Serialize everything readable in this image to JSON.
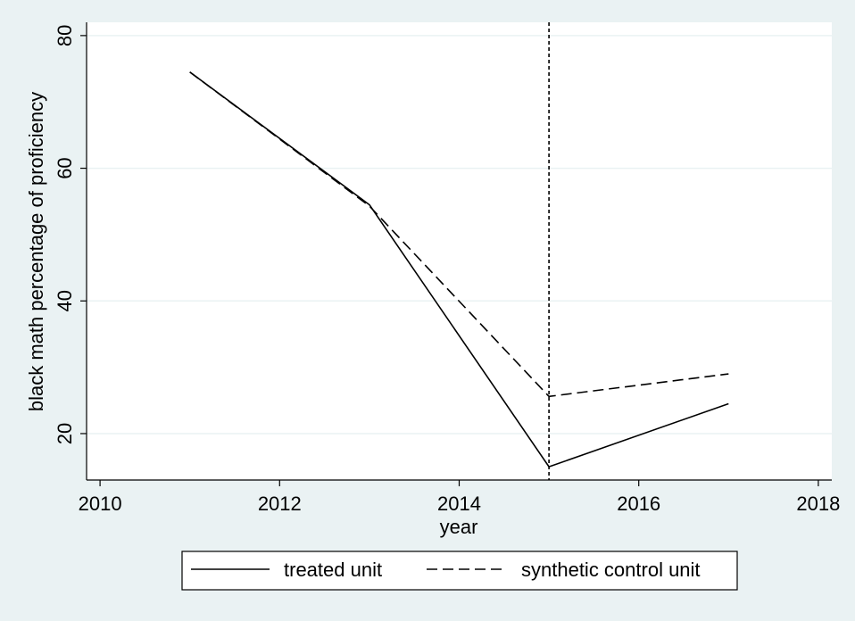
{
  "chart_data": {
    "type": "line",
    "title": "",
    "xlabel": "year",
    "ylabel": "black math percentage of proficiency",
    "xlim": [
      2009.85,
      2018.15
    ],
    "ylim": [
      13,
      82
    ],
    "xticks": [
      2010,
      2012,
      2014,
      2016,
      2018
    ],
    "yticks": [
      20,
      40,
      60,
      80
    ],
    "xtick_labels": [
      "2010",
      "2012",
      "2014",
      "2016",
      "2018"
    ],
    "ytick_labels": [
      "20",
      "40",
      "60",
      "80"
    ],
    "grid": "horizontal",
    "vline": {
      "x": 2015,
      "style": "dotted"
    },
    "legend_position": "bottom",
    "series": [
      {
        "name": "treated unit",
        "style": "solid",
        "x": [
          2011,
          2013,
          2015,
          2017
        ],
        "y": [
          74.5,
          54.5,
          15.0,
          24.5
        ]
      },
      {
        "name": "synthetic control unit",
        "style": "dashed",
        "x": [
          2011,
          2013,
          2015,
          2017
        ],
        "y": [
          74.5,
          54.3,
          25.6,
          29.0
        ]
      }
    ],
    "colors": {
      "background": "#eaf2f3",
      "plot_bg": "#ffffff",
      "grid": "#eaf2f3",
      "line": "#000000"
    }
  }
}
